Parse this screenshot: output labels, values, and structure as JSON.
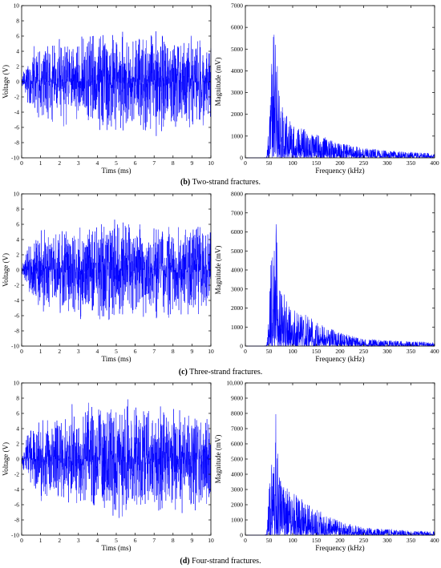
{
  "figure": {
    "rows": [
      {
        "caption_label": "(b)",
        "caption_text": " Two-strand fractures.",
        "time": {
          "type": "line",
          "xlabel": "Tims (ms)",
          "ylabel": "Voltage (V)",
          "xlim": [
            0,
            10
          ],
          "ylim": [
            -10,
            10
          ],
          "xticks": [
            "0",
            "1",
            "2",
            "3",
            "4",
            "5",
            "6",
            "7",
            "8",
            "9",
            "10"
          ],
          "yticks": [
            "-10",
            "-8",
            "-6",
            "-4",
            "-2",
            "0",
            "2",
            "4",
            "6",
            "8",
            "10"
          ],
          "series_color": "#0000ff",
          "envelope": {
            "x": [
              0,
              0.5,
              1,
              2,
              3,
              4,
              5,
              6,
              7,
              8,
              9,
              10
            ],
            "upper": [
              0.5,
              4.5,
              5.5,
              6,
              6.5,
              7.5,
              7,
              7,
              7.5,
              6.5,
              6.5,
              6
            ],
            "lower": [
              -0.5,
              -4.5,
              -5.5,
              -6,
              -6.5,
              -7.5,
              -8,
              -7.5,
              -8,
              -7,
              -7,
              -6.5
            ]
          }
        },
        "spectrum": {
          "type": "line",
          "xlabel": "Frequency (kHz)",
          "ylabel": "Magnitude (mV)",
          "xlim": [
            0,
            400
          ],
          "ylim": [
            0,
            7000
          ],
          "xticks": [
            "0",
            "50",
            "100",
            "150",
            "200",
            "250",
            "300",
            "350",
            "400"
          ],
          "yticks": [
            "0",
            "1000",
            "2000",
            "3000",
            "4000",
            "5000",
            "6000",
            "7000"
          ],
          "series_color": "#0000ff",
          "envelope": {
            "x": [
              0,
              40,
              45,
              50,
              55,
              60,
              63,
              66,
              70,
              80,
              100,
              150,
              200,
              250,
              300,
              350,
              400
            ],
            "upper": [
              0,
              0,
              80,
              1600,
              4000,
              6600,
              6800,
              5000,
              3500,
              2200,
              1600,
              1100,
              700,
              450,
              350,
              260,
              200
            ]
          }
        }
      },
      {
        "caption_label": "(c)",
        "caption_text": " Three-strand fractures.",
        "time": {
          "type": "line",
          "xlabel": "Tims (ms)",
          "ylabel": "Voltage (V)",
          "xlim": [
            0,
            10
          ],
          "ylim": [
            -10,
            10
          ],
          "xticks": [
            "0",
            "1",
            "2",
            "3",
            "4",
            "5",
            "6",
            "7",
            "8",
            "9",
            "10"
          ],
          "yticks": [
            "-10",
            "-8",
            "-6",
            "-4",
            "-2",
            "0",
            "2",
            "4",
            "6",
            "8",
            "10"
          ],
          "series_color": "#0000ff",
          "envelope": {
            "x": [
              0,
              0.5,
              1,
              2,
              3,
              4,
              5,
              6,
              7,
              8,
              9,
              10
            ],
            "upper": [
              0.5,
              4.5,
              5.5,
              6,
              6.5,
              7,
              7.5,
              7,
              7,
              6.5,
              6.5,
              6
            ],
            "lower": [
              -0.5,
              -4.5,
              -5.5,
              -6.5,
              -7,
              -7.5,
              -8,
              -7.5,
              -7.5,
              -7.5,
              -7,
              -6
            ]
          }
        },
        "spectrum": {
          "type": "line",
          "xlabel": "Frequency (kHz)",
          "ylabel": "Magnitude (mV)",
          "xlim": [
            0,
            400
          ],
          "ylim": [
            0,
            8000
          ],
          "xticks": [
            "0",
            "50",
            "100",
            "150",
            "200",
            "250",
            "300",
            "350",
            "400"
          ],
          "yticks": [
            "0",
            "1000",
            "2000",
            "3000",
            "4000",
            "5000",
            "6000",
            "7000",
            "8000"
          ],
          "series_color": "#0000ff",
          "envelope": {
            "x": [
              0,
              40,
              45,
              50,
              55,
              60,
              65,
              70,
              80,
              100,
              150,
              200,
              250,
              300,
              350,
              400
            ],
            "upper": [
              0,
              0,
              100,
              2500,
              5100,
              4500,
              6900,
              4000,
              2800,
              2100,
              1300,
              700,
              400,
              300,
              250,
              200
            ]
          }
        }
      },
      {
        "caption_label": "(d)",
        "caption_text": " Four-strand fractures.",
        "time": {
          "type": "line",
          "xlabel": "Tims (ms)",
          "ylabel": "Voltage (V)",
          "xlim": [
            0,
            10
          ],
          "ylim": [
            -10,
            10
          ],
          "xticks": [
            "0",
            "1",
            "2",
            "3",
            "4",
            "5",
            "6",
            "7",
            "8",
            "9",
            "10"
          ],
          "yticks": [
            "-10",
            "-8",
            "-6",
            "-4",
            "-2",
            "0",
            "2",
            "4",
            "6",
            "8",
            "10"
          ],
          "series_color": "#0000ff",
          "envelope": {
            "x": [
              0,
              0.5,
              1,
              2,
              3,
              4,
              5,
              6,
              7,
              8,
              9,
              10
            ],
            "upper": [
              0.5,
              5,
              6,
              6.5,
              8,
              7.5,
              9,
              7.5,
              8,
              7,
              7,
              6
            ],
            "lower": [
              -0.5,
              -5,
              -6,
              -6.5,
              -7,
              -7.5,
              -8.5,
              -7.5,
              -7.5,
              -8,
              -8.5,
              -6.5
            ]
          }
        },
        "spectrum": {
          "type": "line",
          "xlabel": "Frequency (kHz)",
          "ylabel": "Magnitude (mV)",
          "xlim": [
            0,
            400
          ],
          "ylim": [
            0,
            10000
          ],
          "xticks": [
            "0",
            "50",
            "100",
            "150",
            "200",
            "250",
            "300",
            "350",
            "400"
          ],
          "yticks": [
            "0",
            "1000",
            "2000",
            "3000",
            "4000",
            "5000",
            "6000",
            "7000",
            "8000",
            "9000",
            "10,000"
          ],
          "series_color": "#0000ff",
          "envelope": {
            "x": [
              0,
              40,
              45,
              50,
              55,
              60,
              65,
              70,
              80,
              100,
              150,
              200,
              250,
              300,
              350,
              400
            ],
            "upper": [
              0,
              0,
              100,
              3000,
              5000,
              4300,
              8500,
              4200,
              3500,
              2800,
              1700,
              900,
              500,
              400,
              300,
              250
            ]
          }
        }
      }
    ]
  }
}
